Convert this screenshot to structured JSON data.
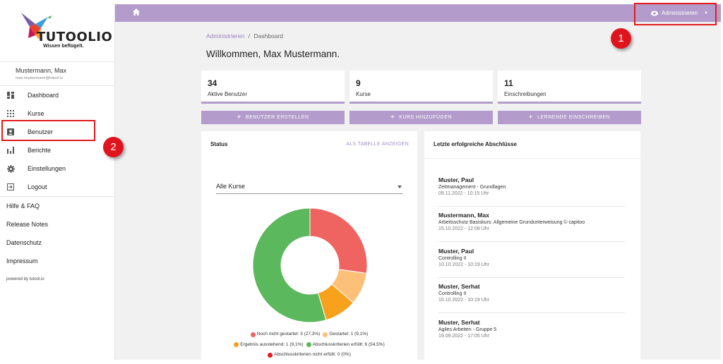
{
  "logo": {
    "name": "TUTOOLIO",
    "tagline": "Wissen beflügelt."
  },
  "user": {
    "name": "Mustermann, Max",
    "email": "max.mustermann@tutool.io"
  },
  "nav": [
    {
      "label": "Dashboard",
      "icon": "dashboard-icon"
    },
    {
      "label": "Kurse",
      "icon": "grid-icon"
    },
    {
      "label": "Benutzer",
      "icon": "user-card-icon"
    },
    {
      "label": "Berichte",
      "icon": "bar-chart-icon"
    },
    {
      "label": "Einstellungen",
      "icon": "gear-icon"
    },
    {
      "label": "Logout",
      "icon": "logout-icon"
    }
  ],
  "links": [
    "Hilfe & FAQ",
    "Release Notes",
    "Datenschutz",
    "Impressum"
  ],
  "powered": "powered by tutool.io",
  "topbar": {
    "admin_label": "Administrieren"
  },
  "breadcrumb": {
    "root": "Administrieren",
    "sep": "/",
    "current": "Dashboard"
  },
  "welcome": "Willkommen, Max Mustermann.",
  "stats": [
    {
      "value": "34",
      "label": "Aktive Benutzer"
    },
    {
      "value": "9",
      "label": "Kurse"
    },
    {
      "value": "11",
      "label": "Einschreibungen"
    }
  ],
  "actions": [
    "BENUTZER ERSTELLEN",
    "KURS HINZUFÜGEN",
    "LERNENDE EINSCHREIBEN"
  ],
  "status_panel": {
    "title": "Status",
    "link": "ALS TABELLE ANZEIGEN",
    "select_value": "Alle Kurse"
  },
  "chart_data": {
    "type": "pie",
    "donut": true,
    "slices": [
      {
        "label": "Noch nicht gestartet: 3 (27,3%)",
        "value": 3,
        "color": "#ef6461"
      },
      {
        "label": "Gestartet: 1 (9,1%)",
        "value": 1,
        "color": "#fcc078"
      },
      {
        "label": "Ergebnis ausstehend: 1 (9,1%)",
        "value": 1,
        "color": "#f7a11d"
      },
      {
        "label": "Abschlusskriterien erfüllt: 6 (54,5%)",
        "value": 6,
        "color": "#5cb85c"
      },
      {
        "label": "Abschlusskriterien nicht erfüllt: 0 (0%)",
        "value": 0,
        "color": "#e8191f"
      }
    ]
  },
  "completions_panel": {
    "title": "Letzte erfolgreiche Abschlüsse",
    "items": [
      {
        "name": "Muster, Paul",
        "course": "Zeitmanagement - Grundlagen",
        "date": "09.11.2022 - 10:15 Uhr"
      },
      {
        "name": "Mustermann, Max",
        "course": "Arbeitsschutz Basiskurs: Allgemeine Grundunterweisung © capitoo",
        "date": "15.10.2022 - 12:08 Uhr"
      },
      {
        "name": "Muster, Paul",
        "course": "Controlling II",
        "date": "10.10.2022 - 10:19 Uhr"
      },
      {
        "name": "Muster, Serhat",
        "course": "Controlling II",
        "date": "10.10.2022 - 10:19 Uhr"
      },
      {
        "name": "Muster, Serhat",
        "course": "Agiles Arbeiten - Gruppe 5",
        "date": "19.09.2022 - 17:05 Uhr"
      }
    ]
  },
  "annotations": [
    "1",
    "2"
  ],
  "colors": {
    "accent": "#b39ccb",
    "highlight": "#e31b1b"
  }
}
